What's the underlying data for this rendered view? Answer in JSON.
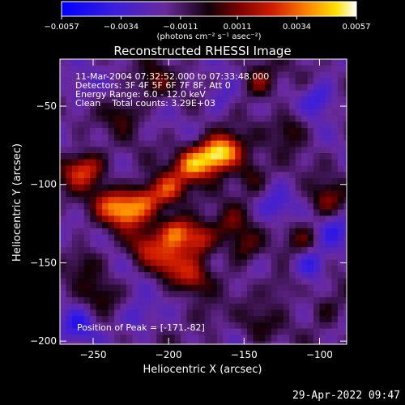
{
  "chart_data": {
    "type": "heatmap",
    "title": "Reconstructed RHESSI Image",
    "xlabel": "Heliocentric X (arcsec)",
    "ylabel": "Heliocentric Y (arcsec)",
    "xlim": [
      -272,
      -82
    ],
    "ylim": [
      -202,
      -20
    ],
    "xticks": [
      -250,
      -200,
      -150,
      -100
    ],
    "yticks": [
      -50,
      -100,
      -150,
      -200
    ],
    "xtick_labels": [
      "−250",
      "−200",
      "−150",
      "−100"
    ],
    "ytick_labels": [
      "−50",
      "−100",
      "−150",
      "−200"
    ],
    "colorbar": {
      "range": [
        -0.0057,
        0.0057
      ],
      "ticks": [
        -0.0057,
        -0.0034,
        -0.0011,
        0.0011,
        0.0034,
        0.0057
      ],
      "tick_labels": [
        "−0.0057",
        "−0.0034",
        "−0.0011",
        "0.0011",
        "0.0034",
        "0.0057"
      ],
      "units": "(photons cm⁻² s⁻¹ asec⁻²)"
    },
    "annotations": [
      "11-Mar-2004 07:32:52.000 to 07:33:48.000",
      "Detectors: 3F 4F 5F 6F 7F 8F, Att 0",
      "Energy Range: 6.0 - 12.0 keV",
      "Clean    Total counts: 3.29E+03"
    ],
    "peak_label": "Position of Peak = [-171,-82]",
    "peak": [
      -171,
      -82
    ],
    "sources": [
      {
        "x": -171,
        "y": -82,
        "value": 0.0057
      },
      {
        "x": -160,
        "y": -78,
        "value": 0.0042
      },
      {
        "x": -185,
        "y": -88,
        "value": 0.0045
      },
      {
        "x": -200,
        "y": -103,
        "value": 0.0038
      },
      {
        "x": -215,
        "y": -110,
        "value": 0.004
      },
      {
        "x": -228,
        "y": -118,
        "value": 0.0046
      },
      {
        "x": -240,
        "y": -112,
        "value": 0.0032
      },
      {
        "x": -252,
        "y": -90,
        "value": 0.003
      },
      {
        "x": -262,
        "y": -92,
        "value": 0.0026
      },
      {
        "x": -195,
        "y": -130,
        "value": 0.0044
      },
      {
        "x": -180,
        "y": -135,
        "value": 0.004
      },
      {
        "x": -200,
        "y": -150,
        "value": 0.0036
      },
      {
        "x": -185,
        "y": -160,
        "value": 0.003
      },
      {
        "x": -215,
        "y": -140,
        "value": 0.0032
      },
      {
        "x": -150,
        "y": -140,
        "value": 0.0024
      },
      {
        "x": -160,
        "y": -125,
        "value": 0.002
      },
      {
        "x": -255,
        "y": -150,
        "value": 0.0018
      },
      {
        "x": -245,
        "y": -170,
        "value": 0.0016
      },
      {
        "x": -145,
        "y": -95,
        "value": 0.0022
      },
      {
        "x": -140,
        "y": -35,
        "value": 0.0028
      },
      {
        "x": -210,
        "y": -35,
        "value": 0.0022
      },
      {
        "x": -120,
        "y": -65,
        "value": 0.002
      },
      {
        "x": -95,
        "y": -110,
        "value": 0.0026
      },
      {
        "x": -110,
        "y": -135,
        "value": 0.0018
      },
      {
        "x": -95,
        "y": -180,
        "value": 0.0016
      },
      {
        "x": -140,
        "y": -190,
        "value": 0.0014
      },
      {
        "x": -230,
        "y": -55,
        "value": 0.002
      },
      {
        "x": -175,
        "y": -185,
        "value": 0.0014
      },
      {
        "x": -125,
        "y": -165,
        "value": 0.0015
      },
      {
        "x": -220,
        "y": -185,
        "value": -0.002
      },
      {
        "x": -100,
        "y": -45,
        "value": -0.0025
      },
      {
        "x": -105,
        "y": -150,
        "value": -0.0028
      },
      {
        "x": -260,
        "y": -190,
        "value": -0.0022
      },
      {
        "x": -130,
        "y": -115,
        "value": -0.0018
      },
      {
        "x": -165,
        "y": -45,
        "value": -0.0015
      },
      {
        "x": -260,
        "y": -40,
        "value": -0.0012
      },
      {
        "x": -90,
        "y": -130,
        "value": -0.002
      }
    ]
  },
  "footer": {
    "date": "29-Apr-2022 09:47"
  }
}
